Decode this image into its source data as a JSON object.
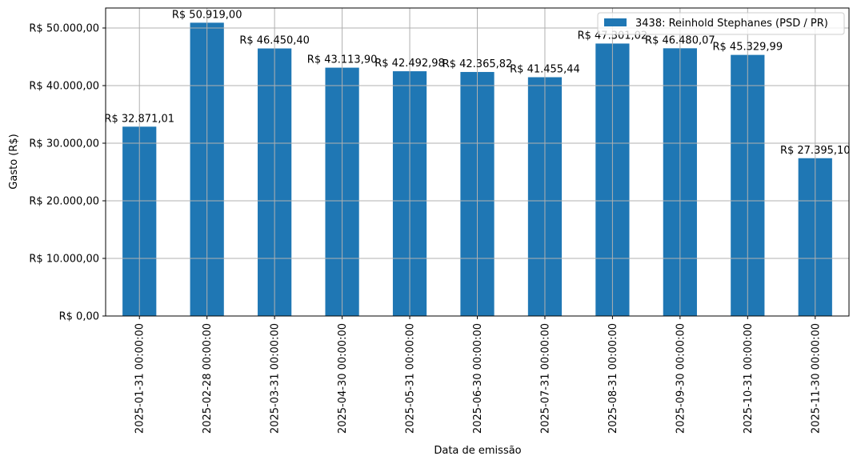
{
  "chart_data": {
    "type": "bar",
    "title": "",
    "xlabel": "Data de emissão",
    "ylabel": "Gasto (R$)",
    "ylim": [
      0,
      53500
    ],
    "grid": true,
    "legend_position": "upper right",
    "categories": [
      "2025-01-31 00:00:00",
      "2025-02-28 00:00:00",
      "2025-03-31 00:00:00",
      "2025-04-30 00:00:00",
      "2025-05-31 00:00:00",
      "2025-06-30 00:00:00",
      "2025-07-31 00:00:00",
      "2025-08-31 00:00:00",
      "2025-09-30 00:00:00",
      "2025-10-31 00:00:00",
      "2025-11-30 00:00:00"
    ],
    "series": [
      {
        "name": "3438: Reinhold Stephanes (PSD / PR)",
        "color": "#1f77b4",
        "values": [
          32871.01,
          50919.0,
          46450.4,
          43113.9,
          42492.98,
          42365.82,
          41455.44,
          47301.02,
          46480.07,
          45329.99,
          27395.1
        ],
        "labels": [
          "R$ 32.871,01",
          "R$ 50.919,00",
          "R$ 46.450,40",
          "R$ 43.113,90",
          "R$ 42.492,98",
          "R$ 42.365,82",
          "R$ 41.455,44",
          "R$ 47.301,02",
          "R$ 46.480,07",
          "R$ 45.329,99",
          "R$ 27.395,10"
        ]
      }
    ],
    "yticks": [
      0,
      10000,
      20000,
      30000,
      40000,
      50000
    ],
    "ytick_labels": [
      "R$ 0,00",
      "R$ 10.000,00",
      "R$ 20.000,00",
      "R$ 30.000,00",
      "R$ 40.000,00",
      "R$ 50.000,00"
    ]
  }
}
